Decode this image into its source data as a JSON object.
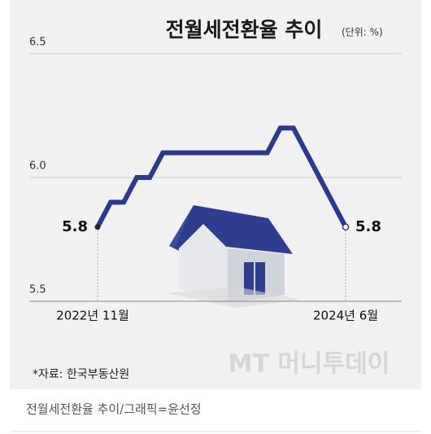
{
  "chart_data": {
    "type": "line",
    "title": "전월세전환율 추이",
    "subtitle": "(단위: %)",
    "categories": [
      "2022년 11월",
      null,
      null,
      null,
      null,
      null,
      null,
      null,
      null,
      null,
      null,
      null,
      null,
      null,
      null,
      null,
      null,
      null,
      null,
      "2024년 6월"
    ],
    "series": [
      {
        "name": "전월세전환율",
        "color": "#2b3990",
        "values": [
          5.8,
          5.9,
          5.9,
          6.0,
          6.0,
          6.1,
          6.1,
          6.1,
          6.1,
          6.1,
          6.1,
          6.1,
          6.1,
          6.1,
          6.2,
          6.2,
          6.1,
          6.0,
          5.9,
          5.8
        ]
      }
    ],
    "ylim": [
      5.5,
      6.5
    ],
    "yticks": [
      5.5,
      {
        "value": 6,
        "label": "6.0"
      },
      6.5
    ],
    "grid": true,
    "source": "*자료: 한국부동산원",
    "watermark": "MT 머니투데이"
  },
  "caption": "전월세전환율 추이/그래픽=윤선정"
}
